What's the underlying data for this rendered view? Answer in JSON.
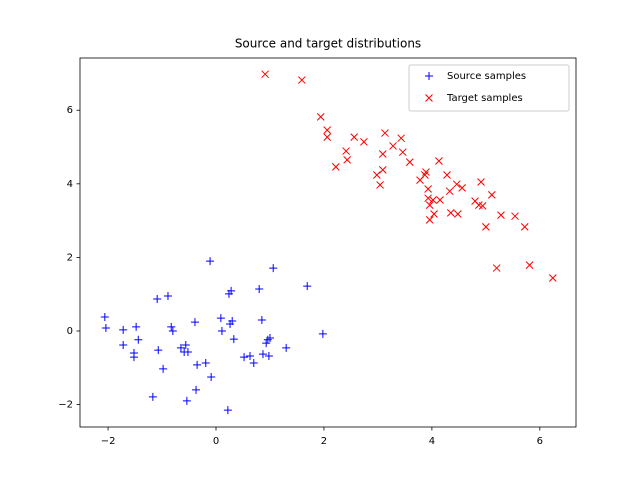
{
  "chart_data": {
    "type": "scatter",
    "title": "Source and target distributions",
    "xlim": [
      -2.52,
      6.67
    ],
    "ylim": [
      -2.61,
      7.42
    ],
    "xticks": [
      {
        "value": -2,
        "label": "−2"
      },
      0,
      2,
      4,
      6
    ],
    "yticks": [
      {
        "value": -2,
        "label": "−2"
      },
      0,
      2,
      4,
      6
    ],
    "grid": false,
    "legend": "upper right",
    "series": [
      {
        "name": "Source samples",
        "color": "#0000ff",
        "marker": "+",
        "x": [
          -2.06,
          -2.04,
          -1.72,
          -1.48,
          -1.72,
          -1.44,
          -1.52,
          -1.52,
          -1.09,
          -0.89,
          -1.07,
          -0.83,
          -0.8,
          -0.65,
          -0.59,
          -0.56,
          -0.52,
          -0.98,
          -1.17,
          -0.54,
          -0.39,
          -0.35,
          -0.37,
          -0.11,
          -0.19,
          -0.09,
          0.11,
          0.09,
          0.24,
          0.28,
          0.26,
          0.3,
          0.33,
          0.22,
          0.52,
          0.63,
          0.7,
          0.8,
          0.85,
          0.87,
          0.93,
          0.96,
          1.0,
          0.98,
          1.06,
          1.3,
          1.69,
          1.98
        ],
        "y": [
          0.38,
          0.08,
          0.03,
          0.11,
          -0.38,
          -0.24,
          -0.71,
          -0.6,
          0.87,
          0.95,
          -0.52,
          0.11,
          0.0,
          -0.46,
          -0.57,
          -0.38,
          -0.57,
          -1.03,
          -1.79,
          -1.9,
          0.24,
          -0.92,
          -1.6,
          1.9,
          -0.87,
          -1.25,
          0.0,
          0.35,
          1.01,
          1.09,
          0.19,
          0.27,
          -0.22,
          -2.15,
          -0.71,
          -0.68,
          -0.87,
          1.14,
          0.3,
          -0.63,
          -0.33,
          -0.24,
          -0.19,
          -0.68,
          1.71,
          -0.46,
          1.22,
          -0.08
        ]
      },
      {
        "name": "Target samples",
        "color": "#ff0000",
        "marker": "x",
        "x": [
          0.91,
          1.59,
          1.94,
          2.06,
          2.06,
          2.22,
          2.41,
          2.43,
          2.56,
          2.74,
          2.98,
          3.04,
          3.09,
          3.09,
          3.13,
          3.28,
          3.43,
          3.46,
          3.59,
          3.78,
          3.87,
          3.89,
          3.93,
          3.93,
          3.96,
          3.96,
          4.02,
          4.04,
          4.15,
          4.13,
          4.28,
          4.33,
          4.35,
          4.46,
          4.48,
          4.56,
          4.8,
          4.87,
          4.91,
          4.94,
          5.0,
          5.11,
          5.2,
          5.28,
          5.54,
          5.72,
          5.81,
          6.24
        ],
        "y": [
          6.98,
          6.82,
          5.82,
          5.46,
          5.27,
          4.46,
          4.89,
          4.65,
          5.27,
          5.14,
          4.24,
          3.97,
          4.38,
          4.81,
          5.38,
          5.03,
          5.24,
          4.86,
          4.59,
          4.1,
          4.24,
          4.32,
          3.86,
          3.61,
          3.42,
          3.02,
          3.56,
          3.18,
          3.56,
          4.62,
          4.24,
          3.8,
          3.21,
          3.99,
          3.18,
          3.89,
          3.53,
          3.42,
          4.05,
          3.4,
          2.83,
          3.7,
          1.71,
          3.15,
          3.12,
          2.83,
          1.79,
          1.44
        ]
      }
    ]
  }
}
